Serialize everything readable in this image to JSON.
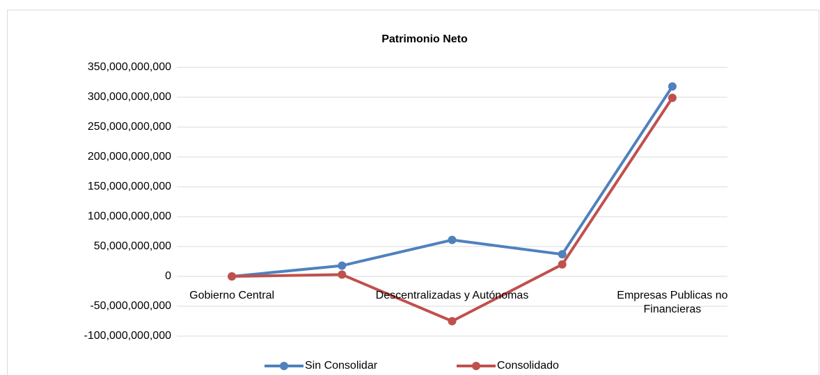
{
  "chart_data": {
    "type": "line",
    "title": "Patrimonio Neto",
    "categories": [
      "Gobierno Central",
      null,
      "Descentralizadas y Autónomas",
      null,
      "Empresas Publicas no Financieras"
    ],
    "series": [
      {
        "name": "Sin Consolidar",
        "color": "#4f81bd",
        "values": [
          0,
          18000000000,
          61000000000,
          37000000000,
          318000000000
        ]
      },
      {
        "name": "Consolidado",
        "color": "#c0504d",
        "values": [
          0,
          3000000000,
          -75000000000,
          20000000000,
          299000000000
        ]
      }
    ],
    "ylim": [
      -100000000000,
      350000000000
    ],
    "yticks": [
      {
        "value": -100000000000,
        "label": "-100,000,000,000"
      },
      {
        "value": -50000000000,
        "label": "-50,000,000,000"
      },
      0,
      {
        "value": 50000000000,
        "label": "50,000,000,000"
      },
      {
        "value": 100000000000,
        "label": "100,000,000,000"
      },
      {
        "value": 150000000000,
        "label": "150,000,000,000"
      },
      {
        "value": 200000000000,
        "label": "200,000,000,000"
      },
      {
        "value": 250000000000,
        "label": "250,000,000,000"
      },
      {
        "value": 300000000000,
        "label": "300,000,000,000"
      },
      {
        "value": 350000000000,
        "label": "350,000,000,000"
      }
    ],
    "grid": true,
    "legend": "bottom"
  }
}
